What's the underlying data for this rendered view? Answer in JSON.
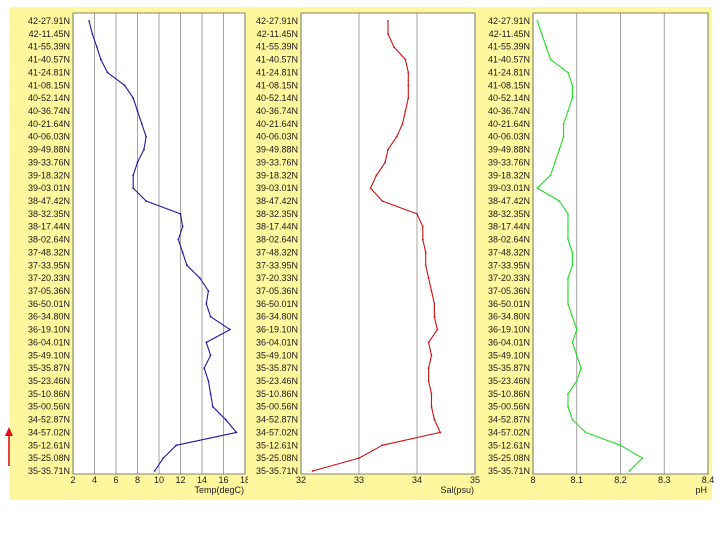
{
  "colors": {
    "panel_bg": "#fff79e",
    "plot_bg": "#ffffff",
    "grid": "#8c8c8c",
    "arrow": "#e01010"
  },
  "icons": {
    "indicator": "up-arrow-icon"
  },
  "latitudes": [
    "42-27.91N",
    "42-11.45N",
    "41-55.39N",
    "41-40.57N",
    "41-24.81N",
    "41-08.15N",
    "40-52.14N",
    "40-36.74N",
    "40-21.64N",
    "40-06.03N",
    "39-49.88N",
    "39-33.76N",
    "39-18.32N",
    "39-03.01N",
    "38-47.42N",
    "38-32.35N",
    "38-17.44N",
    "38-02.64N",
    "37-48.32N",
    "37-33.95N",
    "37-20.33N",
    "37-05.36N",
    "36-50.01N",
    "36-34.80N",
    "36-19.10N",
    "36-04.01N",
    "35-49.10N",
    "35-35.87N",
    "35-23.46N",
    "35-10.86N",
    "35-00.56N",
    "34-52.87N",
    "34-57.02N",
    "35-12.61N",
    "35-25.08N",
    "35-35.71N"
  ],
  "chart_data": [
    {
      "type": "line",
      "xlabel": "Temp(degC)",
      "xlim": [
        2,
        18
      ],
      "xticks": [
        "2",
        "4",
        "6",
        "8",
        "10",
        "12",
        "14",
        "16",
        "18"
      ],
      "color": "#1a1aa0",
      "series": [
        {
          "values": [
            3.5,
            3.8,
            4.2,
            4.6,
            5.2,
            6.8,
            7.6,
            8.0,
            8.4,
            8.8,
            8.6,
            8.0,
            7.6,
            7.6,
            8.8,
            12.0,
            12.2,
            11.8,
            12.2,
            12.6,
            13.8,
            14.6,
            14.4,
            14.8,
            16.6,
            14.4,
            14.8,
            14.2,
            14.6,
            14.8,
            15.0,
            16.2,
            17.2,
            11.6,
            10.4,
            9.6
          ]
        }
      ]
    },
    {
      "type": "line",
      "xlabel": "Sal(psu)",
      "xlim": [
        32,
        35
      ],
      "xticks": [
        "32",
        "33",
        "34",
        "35"
      ],
      "color": "#d01010",
      "series": [
        {
          "values": [
            33.5,
            33.5,
            33.6,
            33.8,
            33.85,
            33.85,
            33.85,
            33.8,
            33.75,
            33.65,
            33.5,
            33.45,
            33.3,
            33.2,
            33.4,
            34.0,
            34.1,
            34.1,
            34.15,
            34.15,
            34.2,
            34.25,
            34.3,
            34.3,
            34.35,
            34.2,
            34.25,
            34.2,
            34.2,
            34.25,
            34.25,
            34.3,
            34.4,
            33.4,
            33.0,
            32.2
          ]
        }
      ]
    },
    {
      "type": "line",
      "xlabel": "pH",
      "xlim": [
        8,
        8.4
      ],
      "xticks": [
        "8",
        "8.1",
        "8.2",
        "8.3",
        "8.4"
      ],
      "color": "#22dd22",
      "series": [
        {
          "values": [
            8.01,
            8.02,
            8.03,
            8.04,
            8.08,
            8.09,
            8.09,
            8.08,
            8.07,
            8.07,
            8.06,
            8.05,
            8.04,
            8.01,
            8.06,
            8.08,
            8.08,
            8.08,
            8.09,
            8.09,
            8.08,
            8.08,
            8.08,
            8.09,
            8.1,
            8.09,
            8.1,
            8.11,
            8.1,
            8.08,
            8.08,
            8.09,
            8.12,
            8.2,
            8.25,
            8.22
          ]
        }
      ]
    }
  ]
}
